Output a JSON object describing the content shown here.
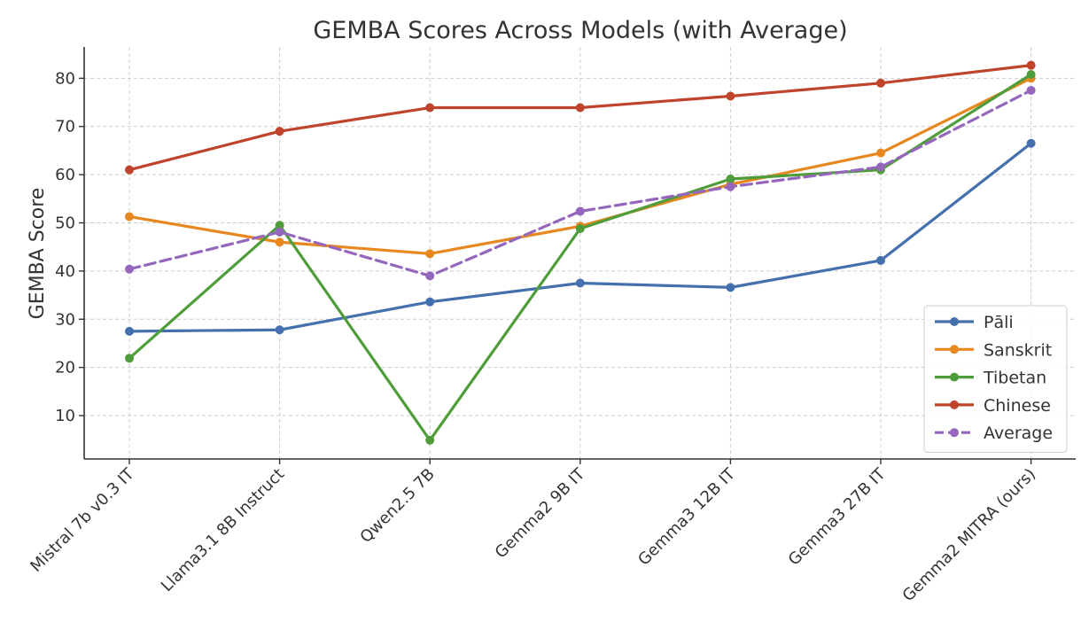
{
  "chart_data": {
    "type": "line",
    "title": "GEMBA Scores Across Models (with Average)",
    "xlabel": "",
    "ylabel": "GEMBA Score",
    "ylim": [
      1,
      86.5
    ],
    "yticks": [
      10,
      20,
      30,
      40,
      50,
      60,
      70,
      80
    ],
    "grid": true,
    "legend_position": "lower-right",
    "categories": [
      "Mistral 7b v0.3 IT",
      "Llama3.1 8B Instruct",
      "Qwen2.5 7B",
      "Gemma2 9B IT",
      "Gemma3 12B IT",
      "Gemma3 27B IT",
      "Gemma2 MITRA (ours)"
    ],
    "series": [
      {
        "name": "Pāli",
        "color": "#4470ad",
        "dashed": false,
        "values": [
          27.5,
          27.8,
          33.6,
          37.5,
          36.6,
          42.2,
          66.5
        ]
      },
      {
        "name": "Sanskrit",
        "color": "#e8871e",
        "dashed": false,
        "values": [
          51.3,
          46.0,
          43.6,
          49.3,
          58.0,
          64.5,
          80.0
        ]
      },
      {
        "name": "Tibetan",
        "color": "#4f9d3a",
        "dashed": false,
        "values": [
          21.9,
          49.5,
          4.9,
          48.8,
          59.1,
          61.0,
          80.8
        ]
      },
      {
        "name": "Chinese",
        "color": "#c0432b",
        "dashed": false,
        "values": [
          61.0,
          69.0,
          73.9,
          73.9,
          76.3,
          79.0,
          82.7
        ]
      },
      {
        "name": "Average",
        "color": "#9467bd",
        "dashed": true,
        "values": [
          40.4,
          48.1,
          39.0,
          52.4,
          57.5,
          61.6,
          77.5
        ]
      }
    ]
  }
}
